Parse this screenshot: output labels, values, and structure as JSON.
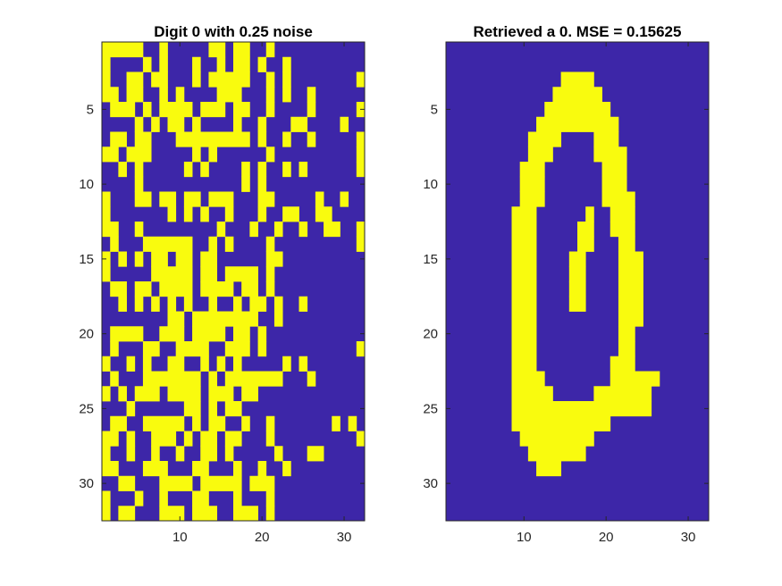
{
  "colors": {
    "background": "#3d26a8",
    "foreground": "#f9fb0e",
    "axis": "#262626"
  },
  "chart_data": [
    {
      "type": "heatmap",
      "title": "Digit 0 with 0.25 noise",
      "xlabel": "",
      "ylabel": "",
      "xlim": [
        0.5,
        32.5
      ],
      "ylim": [
        0.5,
        32.5
      ],
      "y_reversed": true,
      "x_ticks": [
        10,
        20,
        30
      ],
      "y_ticks": [
        5,
        10,
        15,
        20,
        25,
        30
      ],
      "grid": false,
      "value_encoding": "binary: 1 = yellow pixel, 0 = blue pixel; rows top to bottom, columns left to right",
      "rows": [
        "11111001000001101100100000000000",
        "10000101000100101101001000000000",
        "10011011000101111100101000000001",
        "11011001010000111000101001000000",
        "01110101111011101100100001000001",
        "00001010110100001001000110000100",
        "01101100011111111101001001000001",
        "11011100000101000000100000000001",
        "00101000001010000101001010000001",
        "00001000000000000101000000000000",
        "10001101101101110001100000100100",
        "10000000101010010001001100110000",
        "11001000000000100010010010011001",
        "01000111111001010000100000000001",
        "10101011011011000000110000000000",
        "10000011111011011110100000000000",
        "01101101111011110110100000000000",
        "00101010101001001011010010000000",
        "00000000110111111110010000000000",
        "01111001110111101101000000000000",
        "01000110011110011101000000000001",
        "10010100110010101000001010000000",
        "01000111111101011111110001000000",
        "10101110111101110110000000000000",
        "00010000001101011000000000000000",
        "01100111110101100100100000001010",
        "11010011101011011000100000000001",
        "10010010010011010000010001100000",
        "11000111000110001001001000000000",
        "00110001111011111011100000000000",
        "10001001000110001000100000000000",
        "10110001110111001110100000000000"
      ]
    },
    {
      "type": "heatmap",
      "title": "Retrieved a 0. MSE = 0.15625",
      "xlabel": "",
      "ylabel": "",
      "xlim": [
        0.5,
        32.5
      ],
      "ylim": [
        0.5,
        32.5
      ],
      "y_reversed": true,
      "x_ticks": [
        10,
        20,
        30
      ],
      "y_ticks": [
        5,
        10,
        15,
        20,
        25,
        30
      ],
      "grid": false,
      "value_encoding": "binary: 1 = yellow pixel, 0 = blue pixel; rows top to bottom, columns left to right",
      "rows": [
        "00000000000000000000000000000000",
        "00000000000000000000000000000000",
        "00000000000000111100000000000000",
        "00000000000001111110000000000000",
        "00000000000011111111000000000000",
        "00000000000111111111100000000000",
        "00000000001111000011100000000000",
        "00000000001110000011110000000000",
        "00000000011100000001110000000000",
        "00000000011100000001110000000000",
        "00000000011100000001111000000000",
        "00000000111000000100111000000000",
        "00000000111000001100111000000000",
        "00000000111000001100011000000000",
        "00000000111000011000011100000000",
        "00000000111000011000011100000000",
        "00000000111000011000011100000000",
        "00000000111000011000011100000000",
        "00000000111000000000011100000000",
        "00000000111000000000011000000000",
        "00000000111000000000011000000000",
        "00000000111000000000111000000000",
        "00000000111100000000111111000000",
        "00000000111110000011111110000000",
        "00000000111111111111111110000000",
        "00000000111111111111000000000000",
        "00000000011111111100000000000000",
        "00000000001111111000000000000000",
        "00000000000111000000000000000000",
        "00000000000000000000000000000000",
        "00000000000000000000000000000000",
        "00000000000000000000000000000000"
      ]
    }
  ]
}
